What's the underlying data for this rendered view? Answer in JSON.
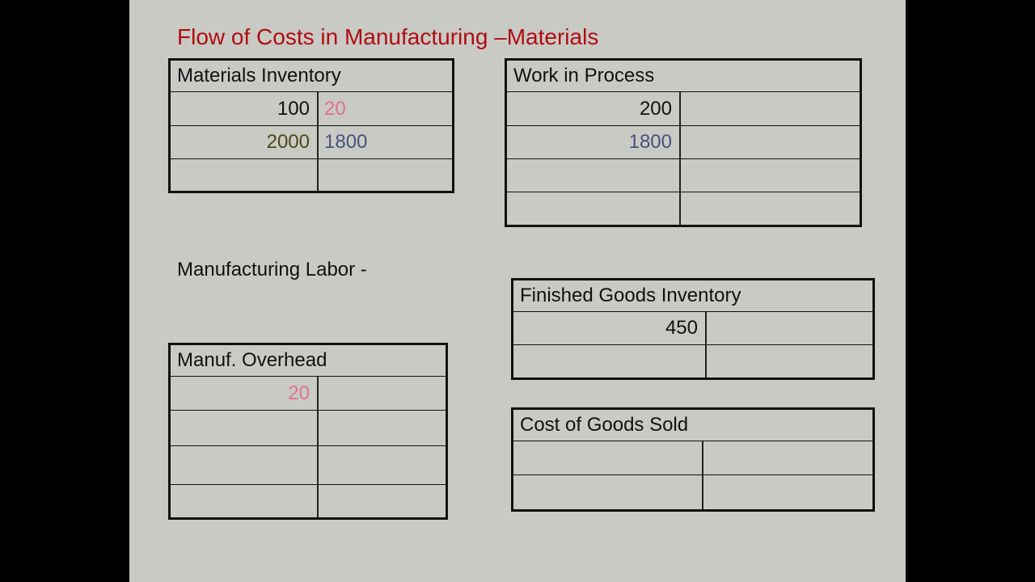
{
  "slide": {
    "title": "Flow of Costs in Manufacturing –Materials",
    "labor_label": "Manufacturing Labor -",
    "colors": {
      "title": "#b00c12",
      "default": "#111111",
      "pink": "#e07090",
      "olive": "#4a4a18",
      "blue": "#4a5080"
    },
    "accounts": [
      {
        "id": "materials-inventory",
        "title": "Materials Inventory",
        "rows": [
          {
            "debit": "100",
            "debit_color": "default",
            "credit": "20",
            "credit_color": "pink"
          },
          {
            "debit": "2000",
            "debit_color": "olive",
            "credit": "1800",
            "credit_color": "blue"
          },
          {
            "debit": "",
            "credit": ""
          }
        ]
      },
      {
        "id": "work-in-process",
        "title": "Work in Process",
        "rows": [
          {
            "debit": "200",
            "debit_color": "default",
            "credit": ""
          },
          {
            "debit": "1800",
            "debit_color": "blue",
            "credit": ""
          },
          {
            "debit": "",
            "credit": ""
          },
          {
            "debit": "",
            "credit": ""
          }
        ]
      },
      {
        "id": "finished-goods-inventory",
        "title": "Finished Goods Inventory",
        "rows": [
          {
            "debit": "450",
            "debit_color": "default",
            "credit": ""
          },
          {
            "debit": "",
            "credit": ""
          }
        ]
      },
      {
        "id": "manufacturing-overhead",
        "title": "Manuf. Overhead",
        "rows": [
          {
            "debit": "20",
            "debit_color": "pink",
            "credit": ""
          },
          {
            "debit": "",
            "credit": ""
          },
          {
            "debit": "",
            "credit": ""
          },
          {
            "debit": "",
            "credit": ""
          }
        ]
      },
      {
        "id": "cost-of-goods-sold",
        "title": "Cost of Goods Sold",
        "rows": [
          {
            "debit": "",
            "credit": ""
          },
          {
            "debit": "",
            "credit": ""
          }
        ]
      }
    ]
  }
}
